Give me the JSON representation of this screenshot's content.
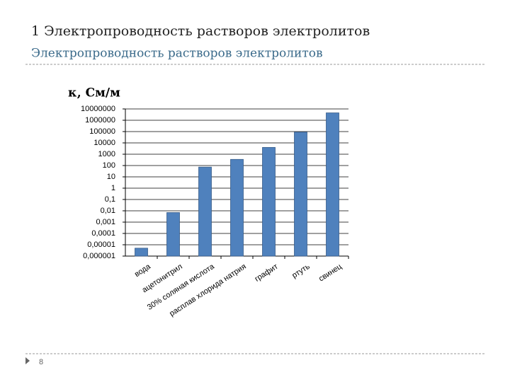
{
  "slide": {
    "title": "1 Электропроводность растворов электролитов",
    "subtitle": "Электропроводность растворов электролитов",
    "page": "8"
  },
  "chart_data": {
    "type": "bar",
    "ylabel": "κ, См/м",
    "categories": [
      "вода",
      "ацетонитрил",
      "30% соляная кислота",
      "расплав хлорида натрия",
      "графит",
      "ртуть",
      "свинец"
    ],
    "values": [
      5e-06,
      0.007,
      73,
      350,
      4000,
      90000,
      4500000
    ],
    "color": "#4f81bd",
    "log_scale": true,
    "grid": true,
    "ylim": [
      1e-06,
      10000000
    ],
    "yticks": [
      {
        "value": 1e-06,
        "label": "0,000001"
      },
      {
        "value": 1e-05,
        "label": "0,00001"
      },
      {
        "value": 0.0001,
        "label": "0,0001"
      },
      {
        "value": 0.001,
        "label": "0,001"
      },
      {
        "value": 0.01,
        "label": "0,01"
      },
      {
        "value": 0.1,
        "label": "0,1"
      },
      1,
      10,
      100,
      1000,
      10000,
      100000,
      1000000,
      10000000
    ]
  }
}
